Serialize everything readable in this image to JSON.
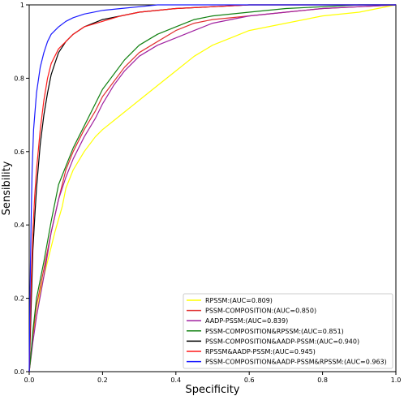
{
  "chart_data": {
    "type": "line",
    "title": "",
    "xlabel": "Specificity",
    "ylabel": "Sensibility",
    "xlim": [
      0.0,
      1.0
    ],
    "ylim": [
      0.0,
      1.0
    ],
    "xticks": [
      0.0,
      0.2,
      0.4,
      0.6,
      0.8,
      1.0
    ],
    "yticks": [
      0.0,
      0.2,
      0.4,
      0.6,
      0.8,
      1.0
    ],
    "xtick_labels": [
      "0.0",
      "0.2",
      "0.4",
      "0.6",
      "0.8",
      "1.0"
    ],
    "ytick_labels": [
      "0.0",
      "0.2",
      "0.4",
      "0.6",
      "0.8",
      "1"
    ],
    "grid": false,
    "legend_position": "bottom-right",
    "series": [
      {
        "name": "RPSSM:(AUC=0.809)",
        "color": "#ffff00",
        "x": [
          0.0,
          0.005,
          0.01,
          0.02,
          0.03,
          0.05,
          0.07,
          0.09,
          0.1,
          0.12,
          0.15,
          0.18,
          0.2,
          0.25,
          0.3,
          0.35,
          0.4,
          0.45,
          0.5,
          0.55,
          0.6,
          0.7,
          0.8,
          0.9,
          0.95,
          1.0
        ],
        "y": [
          0.0,
          0.04,
          0.1,
          0.15,
          0.22,
          0.3,
          0.38,
          0.45,
          0.5,
          0.55,
          0.6,
          0.64,
          0.66,
          0.7,
          0.74,
          0.78,
          0.82,
          0.86,
          0.89,
          0.91,
          0.93,
          0.95,
          0.97,
          0.98,
          0.99,
          1.0
        ]
      },
      {
        "name": "PSSM-COMPOSITION:(AUC=0.850)",
        "color": "#e03030",
        "x": [
          0.0,
          0.005,
          0.01,
          0.02,
          0.04,
          0.06,
          0.08,
          0.1,
          0.12,
          0.15,
          0.18,
          0.2,
          0.23,
          0.26,
          0.3,
          0.35,
          0.4,
          0.45,
          0.5,
          0.6,
          0.7,
          0.8,
          0.9,
          1.0
        ],
        "y": [
          0.0,
          0.05,
          0.1,
          0.18,
          0.28,
          0.38,
          0.47,
          0.55,
          0.6,
          0.66,
          0.71,
          0.75,
          0.79,
          0.83,
          0.87,
          0.9,
          0.93,
          0.95,
          0.96,
          0.97,
          0.98,
          0.99,
          0.995,
          1.0
        ]
      },
      {
        "name": "AADP-PSSM:(AUC=0.839)",
        "color": "#a020a0",
        "x": [
          0.0,
          0.005,
          0.01,
          0.02,
          0.04,
          0.06,
          0.08,
          0.1,
          0.12,
          0.15,
          0.18,
          0.2,
          0.23,
          0.26,
          0.3,
          0.35,
          0.4,
          0.45,
          0.5,
          0.6,
          0.7,
          0.8,
          0.9,
          1.0
        ],
        "y": [
          0.0,
          0.04,
          0.08,
          0.15,
          0.26,
          0.38,
          0.47,
          0.53,
          0.58,
          0.64,
          0.69,
          0.73,
          0.78,
          0.82,
          0.86,
          0.89,
          0.91,
          0.93,
          0.95,
          0.97,
          0.98,
          0.99,
          0.995,
          1.0
        ]
      },
      {
        "name": "PSSM-COMPOSITION&RPSSM:(AUC=0.851)",
        "color": "#108010",
        "x": [
          0.0,
          0.005,
          0.01,
          0.02,
          0.04,
          0.06,
          0.08,
          0.1,
          0.12,
          0.15,
          0.18,
          0.2,
          0.23,
          0.26,
          0.3,
          0.35,
          0.4,
          0.45,
          0.5,
          0.6,
          0.7,
          0.8,
          0.9,
          1.0
        ],
        "y": [
          0.0,
          0.05,
          0.11,
          0.2,
          0.3,
          0.41,
          0.51,
          0.56,
          0.61,
          0.67,
          0.73,
          0.77,
          0.81,
          0.85,
          0.89,
          0.92,
          0.94,
          0.96,
          0.97,
          0.98,
          0.99,
          0.995,
          1.0,
          1.0
        ]
      },
      {
        "name": "PSSM-COMPOSITION&AADP-PSSM:(AUC=0.940)",
        "color": "#000000",
        "x": [
          0.0,
          0.003,
          0.006,
          0.01,
          0.015,
          0.02,
          0.03,
          0.04,
          0.05,
          0.06,
          0.07,
          0.08,
          0.1,
          0.12,
          0.15,
          0.2,
          0.25,
          0.3,
          0.4,
          0.5,
          0.6,
          0.7,
          0.8,
          0.9,
          1.0
        ],
        "y": [
          0.0,
          0.1,
          0.2,
          0.33,
          0.42,
          0.5,
          0.62,
          0.7,
          0.76,
          0.81,
          0.84,
          0.87,
          0.9,
          0.92,
          0.94,
          0.96,
          0.97,
          0.98,
          0.99,
          0.995,
          1.0,
          1.0,
          1.0,
          1.0,
          1.0
        ]
      },
      {
        "name": "RPSSM&AADP-PSSM:(AUC=0.945)",
        "color": "#ff1a1a",
        "x": [
          0.0,
          0.003,
          0.006,
          0.01,
          0.015,
          0.02,
          0.03,
          0.04,
          0.05,
          0.06,
          0.07,
          0.08,
          0.1,
          0.12,
          0.15,
          0.2,
          0.25,
          0.3,
          0.4,
          0.5,
          0.6,
          0.7,
          0.8,
          0.9,
          1.0
        ],
        "y": [
          0.0,
          0.14,
          0.26,
          0.38,
          0.48,
          0.55,
          0.66,
          0.74,
          0.8,
          0.84,
          0.86,
          0.88,
          0.9,
          0.92,
          0.94,
          0.955,
          0.97,
          0.98,
          0.99,
          0.995,
          1.0,
          1.0,
          1.0,
          1.0,
          1.0
        ]
      },
      {
        "name": "PSSM-COMPOSITION&AADP-PSSM&RPSSM:(AUC=0.963)",
        "color": "#1a1aff",
        "x": [
          0.0,
          0.002,
          0.005,
          0.008,
          0.012,
          0.02,
          0.03,
          0.04,
          0.05,
          0.06,
          0.08,
          0.1,
          0.12,
          0.15,
          0.2,
          0.25,
          0.3,
          0.35,
          0.4,
          0.5,
          0.6,
          0.7,
          0.8,
          0.9,
          1.0
        ],
        "y": [
          0.0,
          0.2,
          0.4,
          0.55,
          0.66,
          0.76,
          0.83,
          0.87,
          0.9,
          0.92,
          0.94,
          0.955,
          0.965,
          0.975,
          0.985,
          0.99,
          0.995,
          1.0,
          1.0,
          1.0,
          1.0,
          1.0,
          1.0,
          1.0,
          1.0
        ]
      }
    ]
  }
}
